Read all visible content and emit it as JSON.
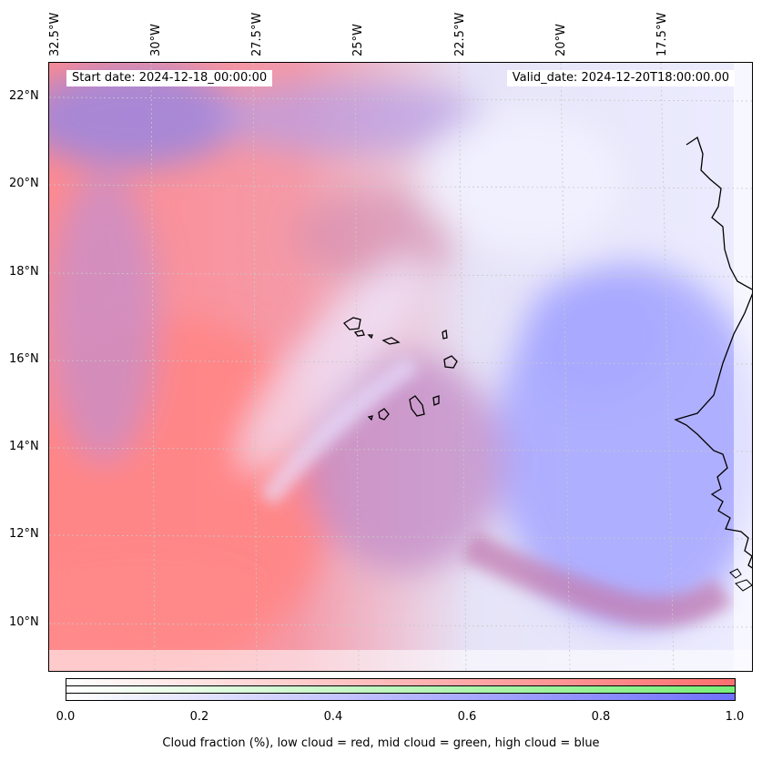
{
  "map": {
    "start_date_label": "Start date: 2024-12-18_00:00:00",
    "valid_date_label": "Valid_date: 2024-12-20T18:00:00.00",
    "longitude_labels": [
      "32.5°W",
      "30°W",
      "27.5°W",
      "25°W",
      "22.5°W",
      "20°W",
      "17.5°W"
    ],
    "latitude_labels": [
      "22°N",
      "20°N",
      "18°N",
      "16°N",
      "14°N",
      "12°N",
      "10°N"
    ],
    "layers": [
      "low cloud",
      "mid cloud",
      "high cloud"
    ],
    "colors": {
      "low_cloud": "#ff7d7d",
      "mid_cloud": "#7df07d",
      "high_cloud": "#7d7dff",
      "coastline": "#000000",
      "gridline": "#c8c8c8"
    }
  },
  "colorbar": {
    "ticks": [
      "0.0",
      "0.2",
      "0.4",
      "0.6",
      "0.8",
      "1.0"
    ],
    "label": "Cloud fraction (%), low cloud = red, mid cloud = green, high cloud = blue"
  }
}
